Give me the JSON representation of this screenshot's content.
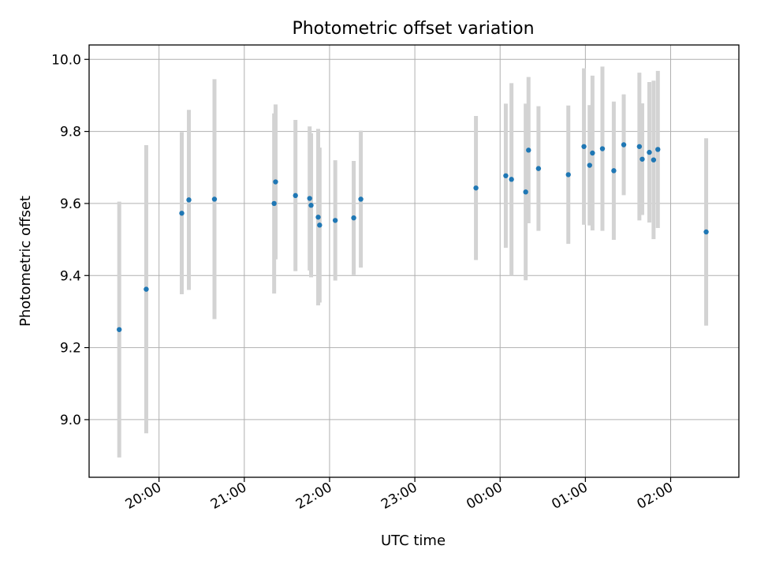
{
  "chart_data": {
    "type": "scatter",
    "title": "Photometric offset variation",
    "xlabel": "UTC time",
    "ylabel": "Photometric offset",
    "x_tick_labels": [
      "20:00",
      "21:00",
      "22:00",
      "23:00",
      "00:00",
      "01:00",
      "02:00"
    ],
    "x_tick_hours": [
      20,
      21,
      22,
      23,
      24,
      25,
      26
    ],
    "xlim_hours": [
      19.18,
      26.8
    ],
    "y_ticks": [
      9.0,
      9.2,
      9.4,
      9.6,
      9.8,
      10.0
    ],
    "y_tick_labels": [
      "9.0",
      "9.2",
      "9.4",
      "9.6",
      "9.8",
      "10.0"
    ],
    "ylim": [
      8.84,
      10.04
    ],
    "grid": true,
    "colors": {
      "point": "#1f77b4",
      "errorbar": "#d3d3d3",
      "grid": "#b0b0b0"
    },
    "series": [
      {
        "points": [
          {
            "time": "19:32",
            "y": 9.25,
            "yerr": 0.355
          },
          {
            "time": "19:51",
            "y": 9.362,
            "yerr": 0.4
          },
          {
            "time": "20:16",
            "y": 9.573,
            "yerr": 0.225
          },
          {
            "time": "20:21",
            "y": 9.61,
            "yerr": 0.25
          },
          {
            "time": "20:39",
            "y": 9.612,
            "yerr": 0.333
          },
          {
            "time": "21:21",
            "y": 9.6,
            "yerr": 0.25
          },
          {
            "time": "21:22",
            "y": 9.66,
            "yerr": 0.215
          },
          {
            "time": "21:36",
            "y": 9.622,
            "yerr": 0.21
          },
          {
            "time": "21:46",
            "y": 9.614,
            "yerr": 0.2
          },
          {
            "time": "21:47",
            "y": 9.595,
            "yerr": 0.2
          },
          {
            "time": "21:52",
            "y": 9.562,
            "yerr": 0.245
          },
          {
            "time": "21:53",
            "y": 9.54,
            "yerr": 0.215
          },
          {
            "time": "22:04",
            "y": 9.553,
            "yerr": 0.167
          },
          {
            "time": "22:17",
            "y": 9.56,
            "yerr": 0.158
          },
          {
            "time": "22:22",
            "y": 9.612,
            "yerr": 0.19
          },
          {
            "time": "23:43",
            "y": 9.643,
            "yerr": 0.2
          },
          {
            "time": "00:04",
            "y": 9.677,
            "yerr": 0.2
          },
          {
            "time": "00:08",
            "y": 9.667,
            "yerr": 0.267
          },
          {
            "time": "00:18",
            "y": 9.632,
            "yerr": 0.245
          },
          {
            "time": "00:20",
            "y": 9.748,
            "yerr": 0.203
          },
          {
            "time": "00:27",
            "y": 9.697,
            "yerr": 0.173
          },
          {
            "time": "00:48",
            "y": 9.68,
            "yerr": 0.192
          },
          {
            "time": "00:59",
            "y": 9.758,
            "yerr": 0.217
          },
          {
            "time": "01:03",
            "y": 9.706,
            "yerr": 0.167
          },
          {
            "time": "01:05",
            "y": 9.74,
            "yerr": 0.215
          },
          {
            "time": "01:12",
            "y": 9.752,
            "yerr": 0.228
          },
          {
            "time": "01:20",
            "y": 9.691,
            "yerr": 0.192
          },
          {
            "time": "01:27",
            "y": 9.763,
            "yerr": 0.14
          },
          {
            "time": "01:38",
            "y": 9.758,
            "yerr": 0.205
          },
          {
            "time": "01:40",
            "y": 9.723,
            "yerr": 0.155
          },
          {
            "time": "01:45",
            "y": 9.742,
            "yerr": 0.195
          },
          {
            "time": "01:48",
            "y": 9.721,
            "yerr": 0.22
          },
          {
            "time": "01:51",
            "y": 9.75,
            "yerr": 0.218
          },
          {
            "time": "02:25",
            "y": 9.521,
            "yerr": 0.26
          }
        ]
      }
    ]
  }
}
